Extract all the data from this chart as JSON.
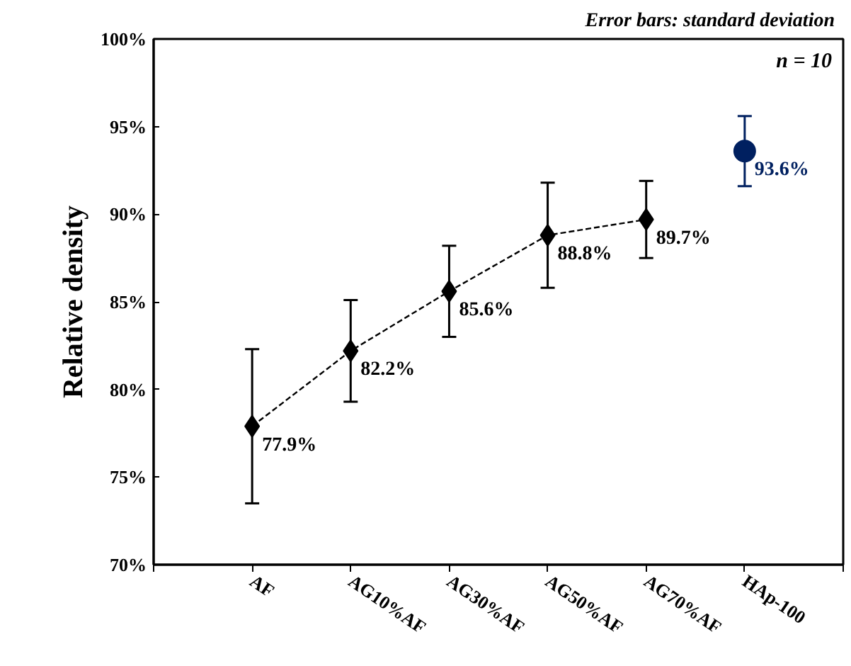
{
  "chart_data": {
    "type": "line",
    "ylabel": "Relative density",
    "categories": [
      "AF",
      "AG10%AF",
      "AG30%AF",
      "AG50%AF",
      "AG70%AF",
      "HAp-100"
    ],
    "series": [
      {
        "type": "line",
        "color": "#000000",
        "marker": "diamond",
        "line_style": "dashed",
        "values": [
          77.9,
          82.2,
          85.6,
          88.8,
          89.7,
          null
        ],
        "errors": [
          4.4,
          2.9,
          2.6,
          3.0,
          2.2,
          null
        ],
        "value_labels": [
          "77.9%",
          "82.2%",
          "85.6%",
          "88.8%",
          "89.7%",
          null
        ]
      },
      {
        "type": "scatter",
        "color": "#002060",
        "marker": "circle",
        "values": [
          null,
          null,
          null,
          null,
          null,
          93.6
        ],
        "errors": [
          null,
          null,
          null,
          null,
          null,
          2.0
        ],
        "value_labels": [
          null,
          null,
          null,
          null,
          null,
          "93.6%"
        ]
      }
    ],
    "ylim": [
      70,
      100
    ],
    "yticks": [
      {
        "value": 70,
        "label": "70%"
      },
      {
        "value": 75,
        "label": "75%"
      },
      {
        "value": 80,
        "label": "80%"
      },
      {
        "value": 85,
        "label": "85%"
      },
      {
        "value": 90,
        "label": "90%"
      },
      {
        "value": 95,
        "label": "95%"
      },
      {
        "value": 100,
        "label": "100%"
      }
    ],
    "annotations": [
      "Error bars: standard deviation",
      "n = 10"
    ],
    "grid": false
  }
}
